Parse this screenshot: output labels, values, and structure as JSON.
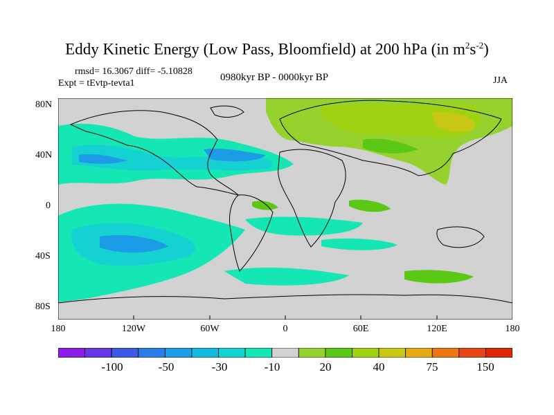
{
  "title": {
    "main": "Eddy Kinetic Energy (Low Pass, Bloomfield) at 200 hPa (in m",
    "sup1": "2",
    "mid": "s",
    "sup2": "-2",
    "end": ")"
  },
  "stats": "rmsd= 16.3067  diff= -5.10828",
  "period": "0980kyr BP - 0000kyr BP",
  "expt": "Expt = tEvtp-tevta1",
  "season": "JJA",
  "y_ticks": [
    "80N",
    "40N",
    "0",
    "40S",
    "80S"
  ],
  "x_ticks": [
    "180",
    "120W",
    "60W",
    "0",
    "60E",
    "120E",
    "180"
  ],
  "colorbar": {
    "labels": [
      "-100",
      "-50",
      "-30",
      "-10",
      "20",
      "40",
      "75",
      "150"
    ],
    "colors": [
      "#8c1ee6",
      "#6a37e8",
      "#3c5ae6",
      "#2a7de6",
      "#1e9be6",
      "#14b9e0",
      "#14d2d2",
      "#14e6b4",
      "#d2d2d2",
      "#96d22d",
      "#5ac814",
      "#a0d214",
      "#c8c814",
      "#e6aa14",
      "#eb7814",
      "#e64614",
      "#dc280a"
    ]
  },
  "colors": {
    "land_neutral": "#d2d2d2",
    "neg_light": "#14e6b4",
    "neg_mid": "#14d2d2",
    "neg_strong": "#1e9be6",
    "pos_light": "#5ac814",
    "pos_mid": "#96d22d",
    "pos_strong": "#a0d214"
  }
}
